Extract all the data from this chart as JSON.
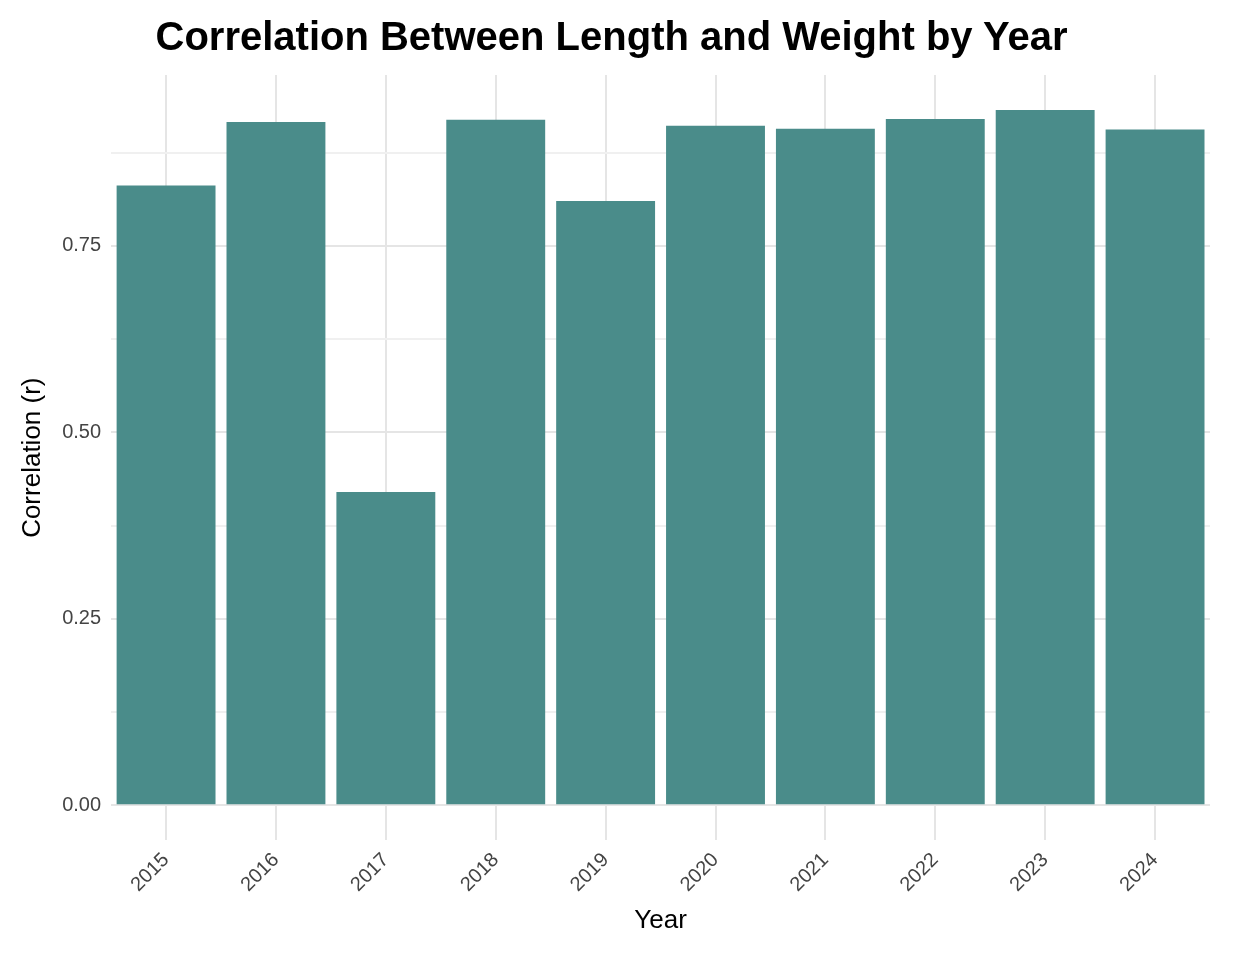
{
  "chart_data": {
    "type": "bar",
    "title": "Correlation Between Length and Weight by Year",
    "xlabel": "Year",
    "ylabel": "Correlation (r)",
    "categories": [
      "2015",
      "2016",
      "2017",
      "2018",
      "2019",
      "2020",
      "2021",
      "2022",
      "2023",
      "2024"
    ],
    "values": [
      0.831,
      0.916,
      0.42,
      0.919,
      0.81,
      0.911,
      0.907,
      0.92,
      0.932,
      0.906
    ],
    "color": "#4a8c8a",
    "ylim": [
      -0.047,
      0.979
    ],
    "yticks": [
      {
        "value": 0,
        "label": "0.00"
      },
      {
        "value": 0.125,
        "label": null
      },
      {
        "value": 0.25,
        "label": "0.25"
      },
      {
        "value": 0.375,
        "label": null
      },
      {
        "value": 0.5,
        "label": "0.50"
      },
      {
        "value": 0.625,
        "label": null
      },
      {
        "value": 0.75,
        "label": "0.75"
      },
      {
        "value": 0.875,
        "label": null
      }
    ],
    "grid": true,
    "legend": false
  }
}
